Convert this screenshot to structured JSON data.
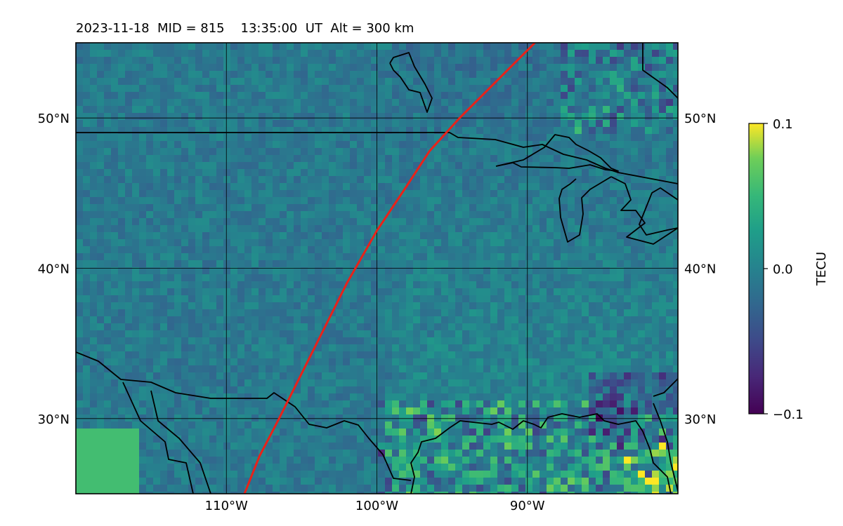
{
  "title": "2023-11-18  MID = 815    13:35:00  UT  Alt = 300 km",
  "chart_data": {
    "type": "heatmap",
    "title": "2023-11-18  MID = 815    13:35:00  UT  Alt = 300 km",
    "x_range_lon": [
      -120,
      -80
    ],
    "y_range_lat": [
      25,
      55
    ],
    "x_ticks": [
      -110,
      -100,
      -90
    ],
    "x_tick_labels": [
      "110°W",
      "100°W",
      "90°W"
    ],
    "y_ticks": [
      30,
      40,
      50
    ],
    "y_tick_labels": [
      "30°N",
      "40°N",
      "50°N"
    ],
    "grid": true,
    "colorbar": {
      "label": "TECU",
      "range": [
        -0.1,
        0.1
      ],
      "ticks": [
        0.1,
        0.0,
        -0.1
      ],
      "tick_labels": [
        "0.1",
        "0.0",
        "−0.1"
      ],
      "colormap": "viridis"
    },
    "terminator_line": {
      "color": "#e8221a",
      "lon": [
        -108.8,
        -107.8,
        -106.5,
        -105,
        -103.5,
        -102,
        -100,
        -98,
        -96.5,
        -94.5,
        -91.5,
        -89.5
      ],
      "lat": [
        25,
        27.5,
        30,
        33,
        36,
        39,
        42.5,
        45.5,
        47.8,
        50,
        53,
        55
      ]
    }
  }
}
